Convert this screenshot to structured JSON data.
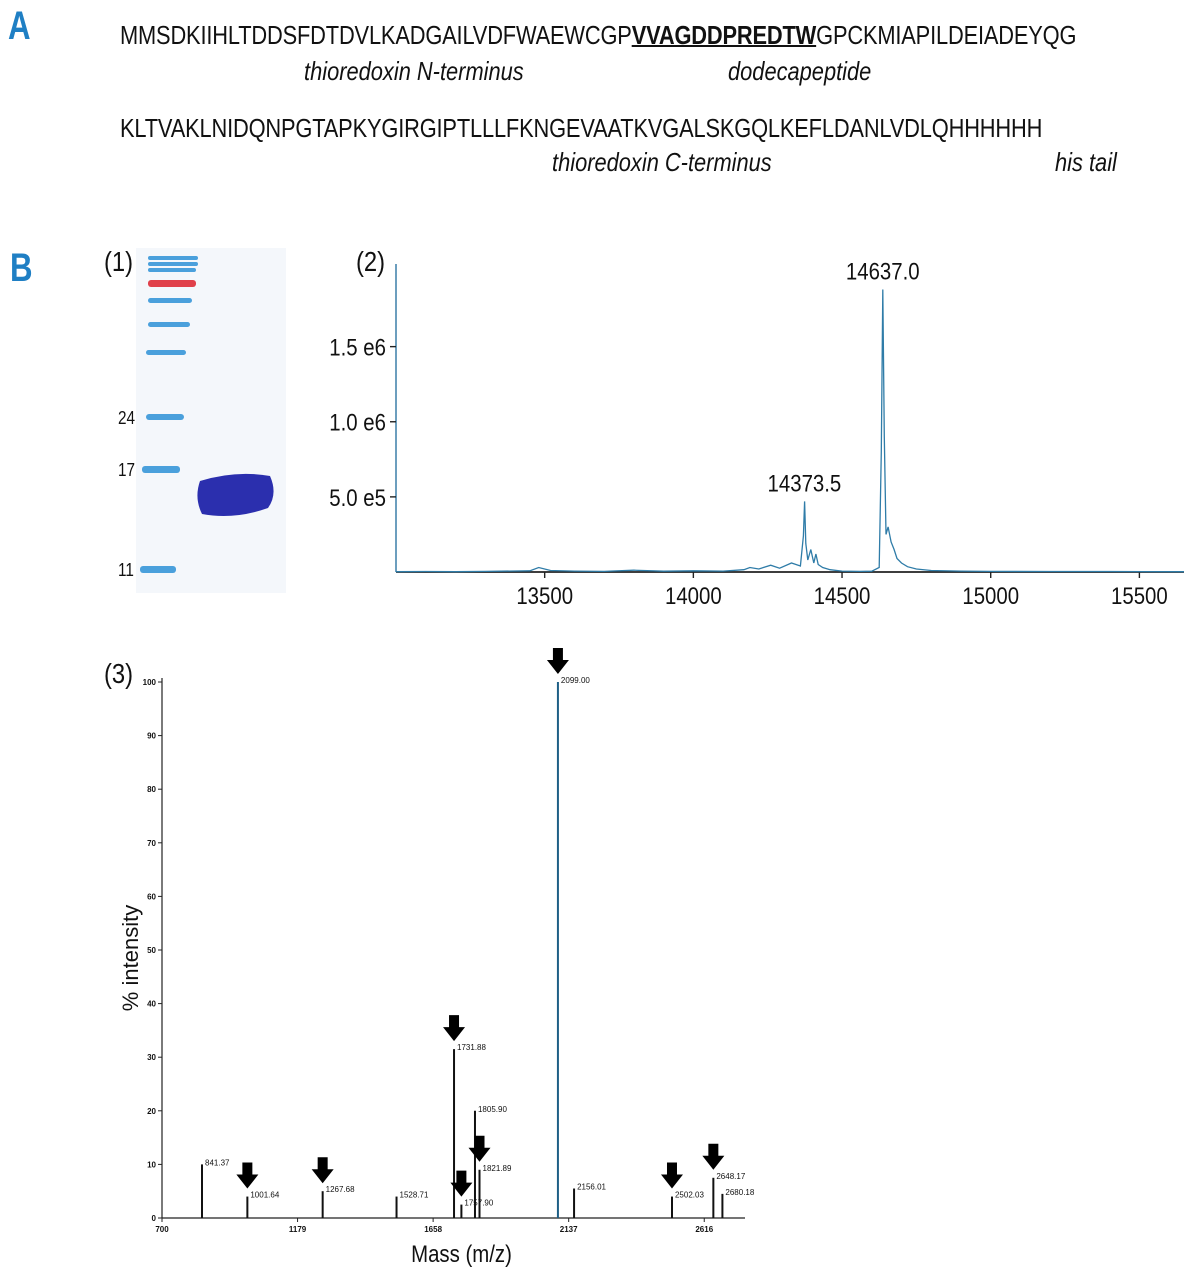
{
  "panel_a": {
    "letter": "A",
    "line1": {
      "pre": "MMSDKIIHLTDDSFDTDVLKADGAILVDFWAEWCGP",
      "underlined": "VVAGDDPREDTW",
      "post": "GPCKMIAPILDEIADEYQG"
    },
    "line1_annotations": [
      "thioredoxin N-terminus",
      "dodecapeptide"
    ],
    "line2": "KLTVAKLNIDQNPGTAPKYGIRGIPTLLLFKNGEVAATKVGALSKGQLKEFLDANLVDLQHHHHHH",
    "line2_annotations": [
      "thioredoxin C-terminus",
      "his tail"
    ]
  },
  "panel_b": {
    "letter": "B",
    "gel": {
      "label": "(1)",
      "marker_labels": [
        "24",
        "17",
        "11"
      ],
      "colors": {
        "blue_marker": "#4aa0dc",
        "red_marker": "#e0404a",
        "band": "#2b2fae",
        "bg": "#f4f7fb"
      }
    }
  },
  "chart_data": [
    {
      "type": "line",
      "label": "(2)",
      "xlim": [
        13000,
        15650
      ],
      "ylim": [
        0,
        2050000
      ],
      "xticks": [
        13500,
        14000,
        14500,
        15000,
        15500
      ],
      "xtick_labels": [
        "13500",
        "14000",
        "14500",
        "15000",
        "15500"
      ],
      "yticks": [
        500000,
        1000000,
        1500000
      ],
      "ytick_labels": [
        "5.0 e5",
        "1.0 e6",
        "1.5 e6"
      ],
      "annotations": [
        {
          "text": "14637.0",
          "x": 14637,
          "y": 1880000
        },
        {
          "text": "14373.5",
          "x": 14373.5,
          "y": 470000
        }
      ],
      "series": [
        {
          "color": "#2f7ca8",
          "x": [
            13000,
            13100,
            13200,
            13300,
            13450,
            13480,
            13520,
            13600,
            13700,
            13800,
            13900,
            14000,
            14100,
            14170,
            14190,
            14220,
            14260,
            14290,
            14330,
            14360,
            14370,
            14374,
            14378,
            14385,
            14395,
            14405,
            14412,
            14420,
            14435,
            14460,
            14500,
            14560,
            14600,
            14625,
            14632,
            14637,
            14642,
            14648,
            14655,
            14665,
            14675,
            14685,
            14700,
            14720,
            14750,
            14800,
            14900,
            15000,
            15200,
            15400,
            15650
          ],
          "y": [
            2000,
            3000,
            2000,
            4000,
            8000,
            30000,
            10000,
            6000,
            4000,
            12000,
            5000,
            8000,
            6000,
            15000,
            30000,
            20000,
            45000,
            25000,
            60000,
            40000,
            240000,
            470000,
            190000,
            80000,
            150000,
            60000,
            120000,
            50000,
            30000,
            15000,
            6000,
            4000,
            5000,
            30000,
            800000,
            1880000,
            900000,
            250000,
            300000,
            200000,
            150000,
            90000,
            60000,
            35000,
            20000,
            10000,
            6000,
            4000,
            3000,
            3000,
            2000
          ]
        }
      ]
    },
    {
      "type": "bar",
      "label": "(3)",
      "xlabel": "Mass (m/z)",
      "ylabel": "% intensity",
      "xlim": [
        700,
        2760
      ],
      "ylim": [
        0,
        100
      ],
      "xticks": [
        700,
        1179,
        1658,
        2137,
        2616
      ],
      "xtick_labels": [
        "700",
        "1179",
        "1658",
        "2137",
        "2616"
      ],
      "yticks": [
        0,
        10,
        20,
        30,
        40,
        50,
        60,
        70,
        80,
        90,
        100
      ],
      "ytick_labels": [
        "0",
        "10",
        "20",
        "30",
        "40",
        "50",
        "60",
        "70",
        "80",
        "90",
        "100"
      ],
      "peaks": [
        {
          "x": 841.37,
          "y": 10,
          "label": "841.37",
          "arrow": false
        },
        {
          "x": 1001.64,
          "y": 4,
          "label": "1001.64",
          "arrow": true
        },
        {
          "x": 1267.68,
          "y": 5,
          "label": "1267.68",
          "arrow": true
        },
        {
          "x": 1528.71,
          "y": 4,
          "label": "1528.71",
          "arrow": false
        },
        {
          "x": 1731.88,
          "y": 31.5,
          "label": "1731.88",
          "arrow": true
        },
        {
          "x": 1757.9,
          "y": 2.5,
          "label": "1757.90",
          "arrow": true
        },
        {
          "x": 1805.9,
          "y": 20,
          "label": "1805.90",
          "arrow": false
        },
        {
          "x": 1821.89,
          "y": 9,
          "label": "1821.89",
          "arrow": true
        },
        {
          "x": 2099.0,
          "y": 100,
          "label": "2099.00",
          "arrow": true
        },
        {
          "x": 2156.01,
          "y": 5.5,
          "label": "2156.01",
          "arrow": false
        },
        {
          "x": 2502.03,
          "y": 4,
          "label": "2502.03",
          "arrow": true
        },
        {
          "x": 2648.17,
          "y": 7.5,
          "label": "2648.17",
          "arrow": true
        },
        {
          "x": 2680.18,
          "y": 4.5,
          "label": "2680.18",
          "arrow": false
        }
      ]
    }
  ]
}
